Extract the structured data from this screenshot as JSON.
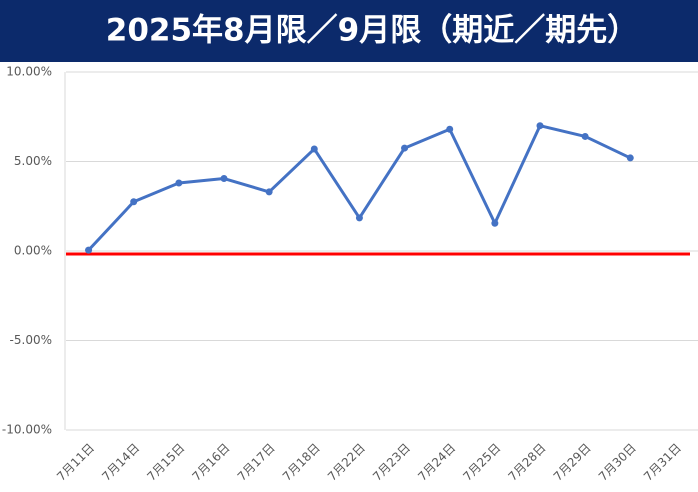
{
  "chart_data": {
    "type": "line",
    "title": "2025年8月限／9月限（期近／期先）",
    "categories": [
      "7月11日",
      "7月14日",
      "7月15日",
      "7月16日",
      "7月17日",
      "7月18日",
      "7月22日",
      "7月23日",
      "7月24日",
      "7月25日",
      "7月28日",
      "7月29日",
      "7月30日",
      "7月31日"
    ],
    "series": [
      {
        "color": "#4472c4",
        "values": [
          0.05,
          2.75,
          3.8,
          4.05,
          3.3,
          5.7,
          1.85,
          5.75,
          6.8,
          1.55,
          7.0,
          6.4,
          5.2,
          null
        ]
      }
    ],
    "ylim": [
      -10,
      10
    ],
    "yticks": [
      {
        "value": 10,
        "label": "10.00%"
      },
      {
        "value": 5,
        "label": "5.00%"
      },
      {
        "value": 0,
        "label": "0.00%"
      },
      {
        "value": -5,
        "label": "-5.00%"
      },
      {
        "value": -10,
        "label": "-10.00%"
      }
    ],
    "grid": true,
    "zero_line_color": "#ff0000"
  }
}
